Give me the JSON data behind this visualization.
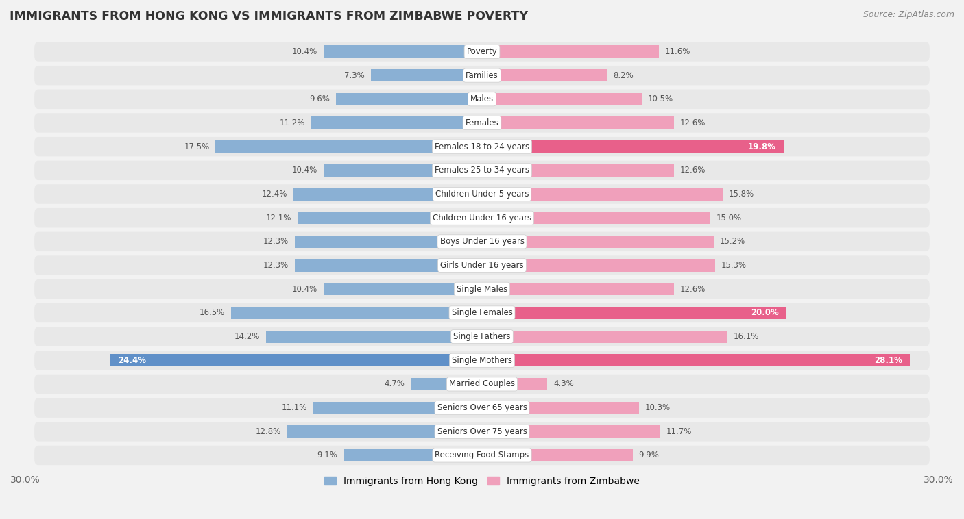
{
  "title": "IMMIGRANTS FROM HONG KONG VS IMMIGRANTS FROM ZIMBABWE POVERTY",
  "source": "Source: ZipAtlas.com",
  "categories": [
    "Poverty",
    "Families",
    "Males",
    "Females",
    "Females 18 to 24 years",
    "Females 25 to 34 years",
    "Children Under 5 years",
    "Children Under 16 years",
    "Boys Under 16 years",
    "Girls Under 16 years",
    "Single Males",
    "Single Females",
    "Single Fathers",
    "Single Mothers",
    "Married Couples",
    "Seniors Over 65 years",
    "Seniors Over 75 years",
    "Receiving Food Stamps"
  ],
  "hong_kong_values": [
    10.4,
    7.3,
    9.6,
    11.2,
    17.5,
    10.4,
    12.4,
    12.1,
    12.3,
    12.3,
    10.4,
    16.5,
    14.2,
    24.4,
    4.7,
    11.1,
    12.8,
    9.1
  ],
  "zimbabwe_values": [
    11.6,
    8.2,
    10.5,
    12.6,
    19.8,
    12.6,
    15.8,
    15.0,
    15.2,
    15.3,
    12.6,
    20.0,
    16.1,
    28.1,
    4.3,
    10.3,
    11.7,
    9.9
  ],
  "hong_kong_color": "#8ab0d4",
  "zimbabwe_color": "#f0a0bb",
  "hong_kong_highlight_color": "#6090c8",
  "zimbabwe_highlight_color": "#e8608a",
  "background_color": "#f2f2f2",
  "row_bg_color": "#e8e8e8",
  "axis_limit": 30.0,
  "legend_hk": "Immigrants from Hong Kong",
  "legend_zw": "Immigrants from Zimbabwe",
  "highlight_threshold": 19.0
}
